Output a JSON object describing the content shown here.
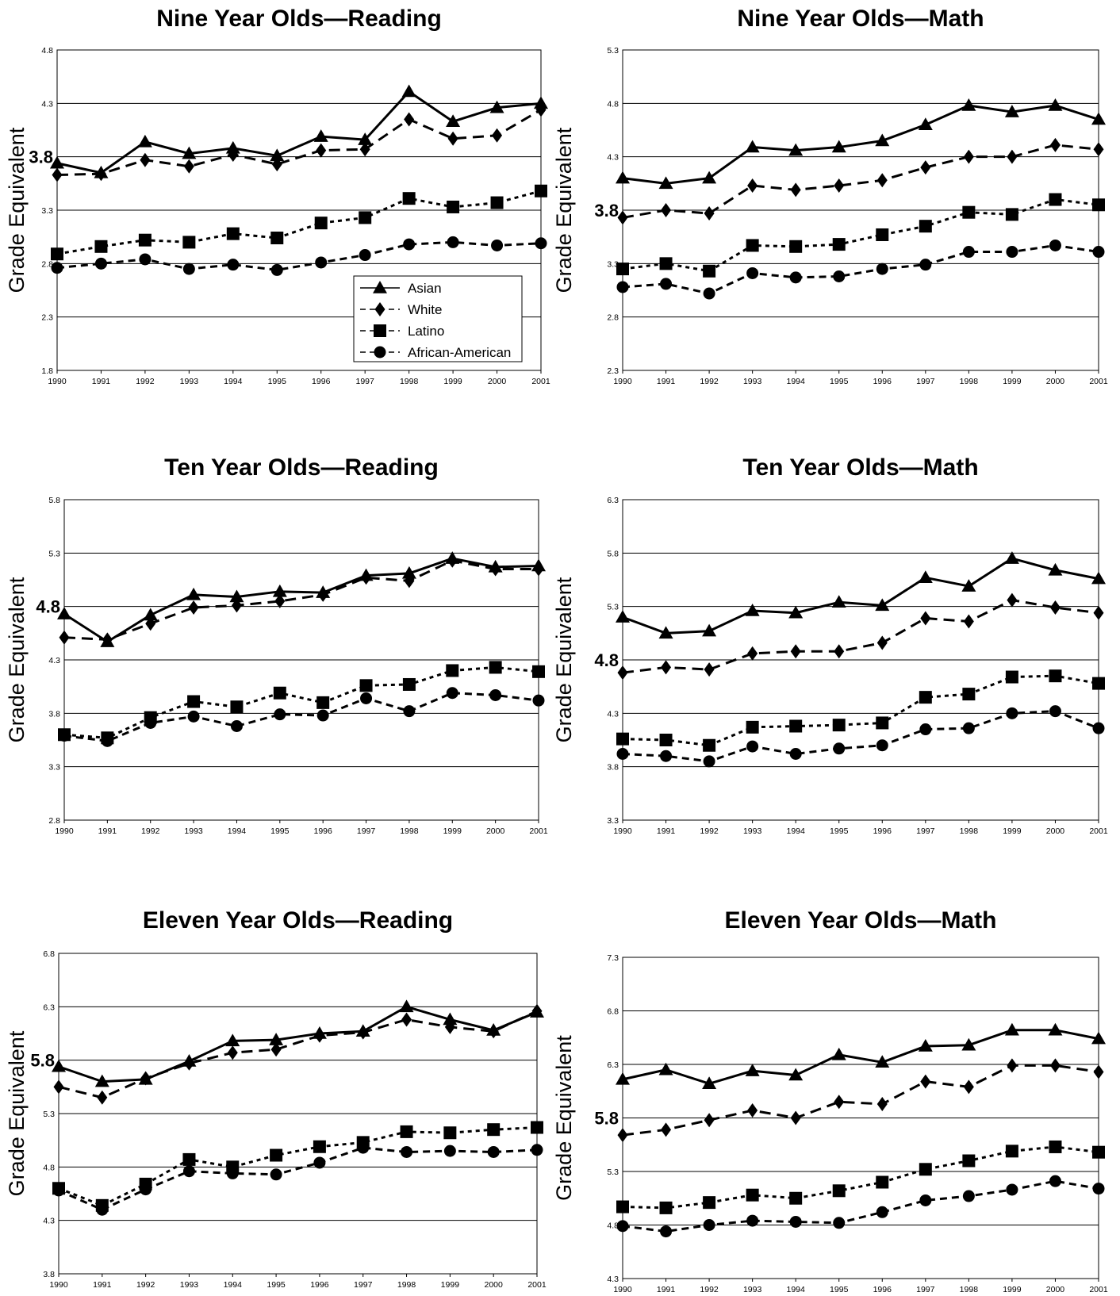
{
  "legend": [
    {
      "name": "Asian",
      "dash": "",
      "marker": "triangle"
    },
    {
      "name": "White",
      "dash": "14,8",
      "marker": "diamond"
    },
    {
      "name": "Latino",
      "dash": "5,5",
      "marker": "square"
    },
    {
      "name": "African-American",
      "dash": "9,6",
      "marker": "circle"
    }
  ],
  "chart_data": [
    {
      "type": "line",
      "title": "Nine Year Olds—Reading",
      "ylabel": "Grade Equivalent",
      "xlabel": "",
      "x": [
        "1990",
        "1991",
        "1992",
        "1993",
        "1994",
        "1995",
        "1996",
        "1997",
        "1998",
        "1999",
        "2000",
        "2001"
      ],
      "ylim": [
        1.8,
        4.8
      ],
      "yticks": [
        "1.8",
        "2.3",
        "2.8",
        "3.3",
        "3.8",
        "4.3",
        "4.8"
      ],
      "highlight_tick": "3.8",
      "grid": true,
      "legend": "bottom-right",
      "series": [
        {
          "name": "Asian",
          "values": [
            3.74,
            3.65,
            3.94,
            3.83,
            3.88,
            3.81,
            3.99,
            3.96,
            4.41,
            4.13,
            4.26,
            4.3
          ]
        },
        {
          "name": "White",
          "values": [
            3.63,
            3.64,
            3.77,
            3.71,
            3.82,
            3.73,
            3.86,
            3.87,
            4.15,
            3.97,
            4.0,
            4.24
          ]
        },
        {
          "name": "Latino",
          "values": [
            2.89,
            2.96,
            3.02,
            3.0,
            3.08,
            3.04,
            3.18,
            3.23,
            3.41,
            3.33,
            3.37,
            3.48
          ]
        },
        {
          "name": "African-American",
          "values": [
            2.76,
            2.8,
            2.84,
            2.75,
            2.79,
            2.74,
            2.81,
            2.88,
            2.98,
            3.0,
            2.97,
            2.99
          ]
        }
      ]
    },
    {
      "type": "line",
      "title": "Nine Year Olds—Math",
      "ylabel": "Grade Equivalent",
      "xlabel": "",
      "x": [
        "1990",
        "1991",
        "1992",
        "1993",
        "1994",
        "1995",
        "1996",
        "1997",
        "1998",
        "1999",
        "2000",
        "2001"
      ],
      "ylim": [
        2.3,
        5.3
      ],
      "yticks": [
        "2.3",
        "2.8",
        "3.3",
        "3.8",
        "4.3",
        "4.8",
        "5.3"
      ],
      "highlight_tick": "3.8",
      "grid": true,
      "series": [
        {
          "name": "Asian",
          "values": [
            4.1,
            4.05,
            4.1,
            4.39,
            4.36,
            4.39,
            4.45,
            4.6,
            4.78,
            4.72,
            4.78,
            4.65
          ]
        },
        {
          "name": "White",
          "values": [
            3.73,
            3.8,
            3.77,
            4.03,
            3.99,
            4.03,
            4.08,
            4.2,
            4.3,
            4.3,
            4.41,
            4.37
          ]
        },
        {
          "name": "Latino",
          "values": [
            3.25,
            3.3,
            3.23,
            3.47,
            3.46,
            3.48,
            3.57,
            3.65,
            3.78,
            3.76,
            3.9,
            3.85
          ]
        },
        {
          "name": "African-American",
          "values": [
            3.08,
            3.11,
            3.02,
            3.21,
            3.17,
            3.18,
            3.25,
            3.29,
            3.41,
            3.41,
            3.47,
            3.41
          ]
        }
      ]
    },
    {
      "type": "line",
      "title": "Ten Year Olds—Reading",
      "ylabel": "Grade Equivalent",
      "xlabel": "",
      "x": [
        "1990",
        "1991",
        "1992",
        "1993",
        "1994",
        "1995",
        "1996",
        "1997",
        "1998",
        "1999",
        "2000",
        "2001"
      ],
      "ylim": [
        2.8,
        5.8
      ],
      "yticks": [
        "2.8",
        "3.3",
        "3.8",
        "4.3",
        "4.8",
        "5.3",
        "5.8"
      ],
      "highlight_tick": "4.8",
      "grid": true,
      "series": [
        {
          "name": "Asian",
          "values": [
            4.73,
            4.47,
            4.72,
            4.91,
            4.89,
            4.94,
            4.93,
            5.09,
            5.11,
            5.25,
            5.17,
            5.18
          ]
        },
        {
          "name": "White",
          "values": [
            4.51,
            4.49,
            4.64,
            4.79,
            4.81,
            4.85,
            4.91,
            5.07,
            5.04,
            5.23,
            5.15,
            5.15
          ]
        },
        {
          "name": "Latino",
          "values": [
            3.6,
            3.57,
            3.76,
            3.91,
            3.86,
            3.99,
            3.9,
            4.06,
            4.07,
            4.2,
            4.23,
            4.19
          ]
        },
        {
          "name": "African-American",
          "values": [
            3.59,
            3.54,
            3.71,
            3.77,
            3.68,
            3.79,
            3.78,
            3.94,
            3.82,
            3.99,
            3.97,
            3.92
          ]
        }
      ]
    },
    {
      "type": "line",
      "title": "Ten Year Olds—Math",
      "ylabel": "Grade Equivalent",
      "xlabel": "",
      "x": [
        "1990",
        "1991",
        "1992",
        "1993",
        "1994",
        "1995",
        "1996",
        "1997",
        "1998",
        "1999",
        "2000",
        "2001"
      ],
      "ylim": [
        3.3,
        6.3
      ],
      "yticks": [
        "3.3",
        "3.8",
        "4.3",
        "4.8",
        "5.3",
        "5.8",
        "6.3"
      ],
      "highlight_tick": "4.8",
      "grid": true,
      "series": [
        {
          "name": "Asian",
          "values": [
            5.2,
            5.05,
            5.07,
            5.26,
            5.24,
            5.34,
            5.31,
            5.57,
            5.49,
            5.75,
            5.64,
            5.56
          ]
        },
        {
          "name": "White",
          "values": [
            4.68,
            4.73,
            4.71,
            4.86,
            4.88,
            4.88,
            4.96,
            5.19,
            5.16,
            5.36,
            5.29,
            5.24
          ]
        },
        {
          "name": "Latino",
          "values": [
            4.06,
            4.05,
            4.0,
            4.17,
            4.18,
            4.19,
            4.21,
            4.45,
            4.48,
            4.64,
            4.65,
            4.58
          ]
        },
        {
          "name": "African-American",
          "values": [
            3.92,
            3.9,
            3.85,
            3.99,
            3.92,
            3.97,
            4.0,
            4.15,
            4.16,
            4.3,
            4.32,
            4.16
          ]
        }
      ]
    },
    {
      "type": "line",
      "title": "Eleven Year Olds—Reading",
      "ylabel": "Grade Equivalent",
      "xlabel": "",
      "x": [
        "1990",
        "1991",
        "1992",
        "1993",
        "1994",
        "1995",
        "1996",
        "1997",
        "1998",
        "1999",
        "2000",
        "2001"
      ],
      "ylim": [
        3.8,
        6.8
      ],
      "yticks": [
        "3.8",
        "4.3",
        "4.8",
        "5.3",
        "5.8",
        "6.3",
        "6.8"
      ],
      "highlight_tick": "5.8",
      "grid": true,
      "series": [
        {
          "name": "Asian",
          "values": [
            5.74,
            5.6,
            5.62,
            5.79,
            5.98,
            5.99,
            6.05,
            6.07,
            6.3,
            6.18,
            6.08,
            6.25
          ]
        },
        {
          "name": "White",
          "values": [
            5.55,
            5.45,
            5.63,
            5.77,
            5.87,
            5.9,
            6.03,
            6.06,
            6.18,
            6.11,
            6.07,
            6.26
          ]
        },
        {
          "name": "Latino",
          "values": [
            4.6,
            4.44,
            4.64,
            4.87,
            4.8,
            4.91,
            4.99,
            5.03,
            5.13,
            5.12,
            5.15,
            5.17
          ]
        },
        {
          "name": "African-American",
          "values": [
            4.58,
            4.4,
            4.59,
            4.76,
            4.74,
            4.73,
            4.84,
            4.98,
            4.94,
            4.95,
            4.94,
            4.96
          ]
        }
      ]
    },
    {
      "type": "line",
      "title": "Eleven Year Olds—Math",
      "ylabel": "Grade Equivalent",
      "xlabel": "",
      "x": [
        "1990",
        "1991",
        "1992",
        "1993",
        "1994",
        "1995",
        "1996",
        "1997",
        "1998",
        "1999",
        "2000",
        "2001"
      ],
      "ylim": [
        4.3,
        7.3
      ],
      "yticks": [
        "4.3",
        "4.8",
        "5.3",
        "5.8",
        "6.3",
        "6.8",
        "7.3"
      ],
      "highlight_tick": "5.8",
      "grid": true,
      "series": [
        {
          "name": "Asian",
          "values": [
            6.16,
            6.25,
            6.12,
            6.24,
            6.2,
            6.39,
            6.32,
            6.47,
            6.48,
            6.62,
            6.62,
            6.54
          ]
        },
        {
          "name": "White",
          "values": [
            5.64,
            5.69,
            5.78,
            5.87,
            5.8,
            5.95,
            5.93,
            6.14,
            6.09,
            6.29,
            6.29,
            6.23
          ]
        },
        {
          "name": "Latino",
          "values": [
            4.97,
            4.96,
            5.01,
            5.08,
            5.05,
            5.12,
            5.2,
            5.32,
            5.4,
            5.49,
            5.53,
            5.48
          ]
        },
        {
          "name": "African-American",
          "values": [
            4.79,
            4.74,
            4.8,
            4.84,
            4.83,
            4.82,
            4.92,
            5.03,
            5.07,
            5.13,
            5.21,
            5.14
          ]
        }
      ]
    }
  ]
}
